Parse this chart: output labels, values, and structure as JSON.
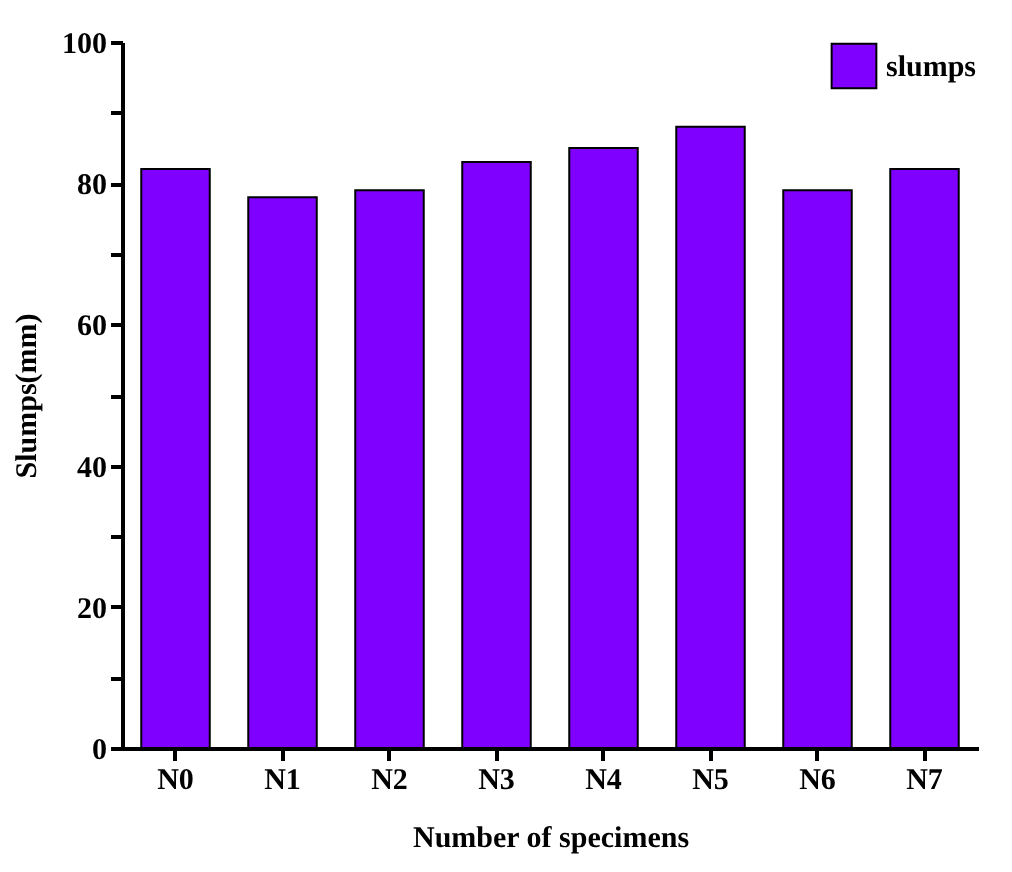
{
  "chart_data": {
    "type": "bar",
    "xlabel": "Number of specimens",
    "ylabel": "Slumps(mm)",
    "categories": [
      "N0",
      "N1",
      "N2",
      "N3",
      "N4",
      "N5",
      "N6",
      "N7"
    ],
    "series": [
      {
        "name": "slumps",
        "color": "#8000ff",
        "values": [
          82,
          78,
          79,
          83,
          85,
          88,
          79,
          82
        ]
      }
    ],
    "ylim": [
      0,
      100
    ],
    "yticks": [
      0,
      {
        "value": 10,
        "label": null
      },
      20,
      {
        "value": 30,
        "label": null
      },
      40,
      {
        "value": 50,
        "label": null
      },
      60,
      {
        "value": 70,
        "label": null
      },
      80,
      {
        "value": 90,
        "label": null
      },
      100
    ],
    "grid": false,
    "legend": "top right"
  }
}
